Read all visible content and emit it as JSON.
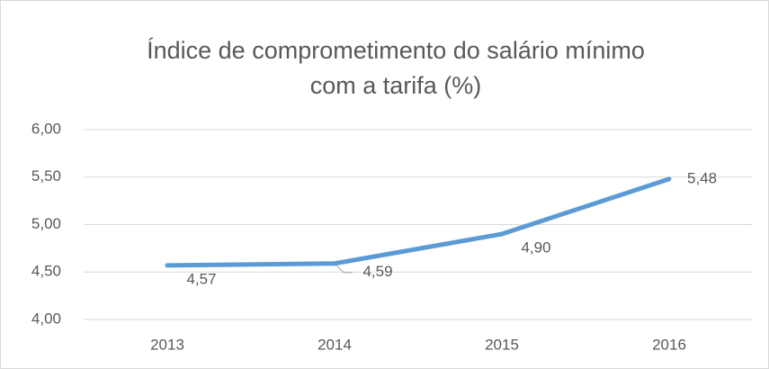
{
  "chart_data": {
    "type": "line",
    "title": [
      "Índice de comprometimento do salário mínimo",
      "com a tarifa (%)"
    ],
    "categories": [
      "2013",
      "2014",
      "2015",
      "2016"
    ],
    "series": [
      {
        "name": "Índice",
        "color": "#5b9bd5",
        "values": [
          4.57,
          4.59,
          4.9,
          5.48
        ],
        "value_labels": [
          "4,57",
          "4,59",
          "4,90",
          "5,48"
        ]
      }
    ],
    "ylim": [
      4,
      6
    ],
    "yticks": [
      {
        "value": 4,
        "label": "4,00"
      },
      {
        "value": 4.5,
        "label": "4,50"
      },
      {
        "value": 5,
        "label": "5,00"
      },
      {
        "value": 5.5,
        "label": "5,50"
      },
      {
        "value": 6,
        "label": "6,00"
      }
    ],
    "grid": true
  }
}
